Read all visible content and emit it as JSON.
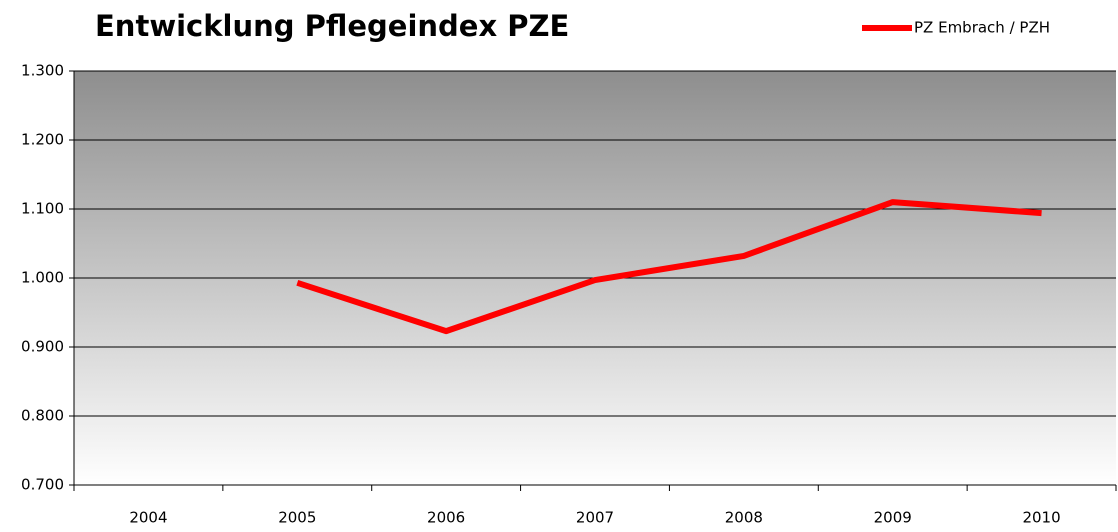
{
  "chart_data": {
    "type": "line",
    "title": "Entwicklung Pflegeindex PZE",
    "categories": [
      "2004",
      "2005",
      "2006",
      "2007",
      "2008",
      "2009",
      "2010"
    ],
    "series": [
      {
        "name": "PZ Embrach / PZH",
        "color": "#ff0000",
        "values": [
          null,
          0.993,
          0.923,
          0.997,
          1.032,
          1.11,
          1.094
        ]
      }
    ],
    "ylim": [
      0.7,
      1.3
    ],
    "yticks": [
      {
        "value": 0.7,
        "label": "0.700"
      },
      {
        "value": 0.8,
        "label": "0.800"
      },
      {
        "value": 0.9,
        "label": "0.900"
      },
      {
        "value": 1.0,
        "label": "1.000"
      },
      {
        "value": 1.1,
        "label": "1.100"
      },
      {
        "value": 1.2,
        "label": "1.200"
      },
      {
        "value": 1.3,
        "label": "1.300"
      }
    ],
    "grid": true,
    "legend": "top-right"
  }
}
